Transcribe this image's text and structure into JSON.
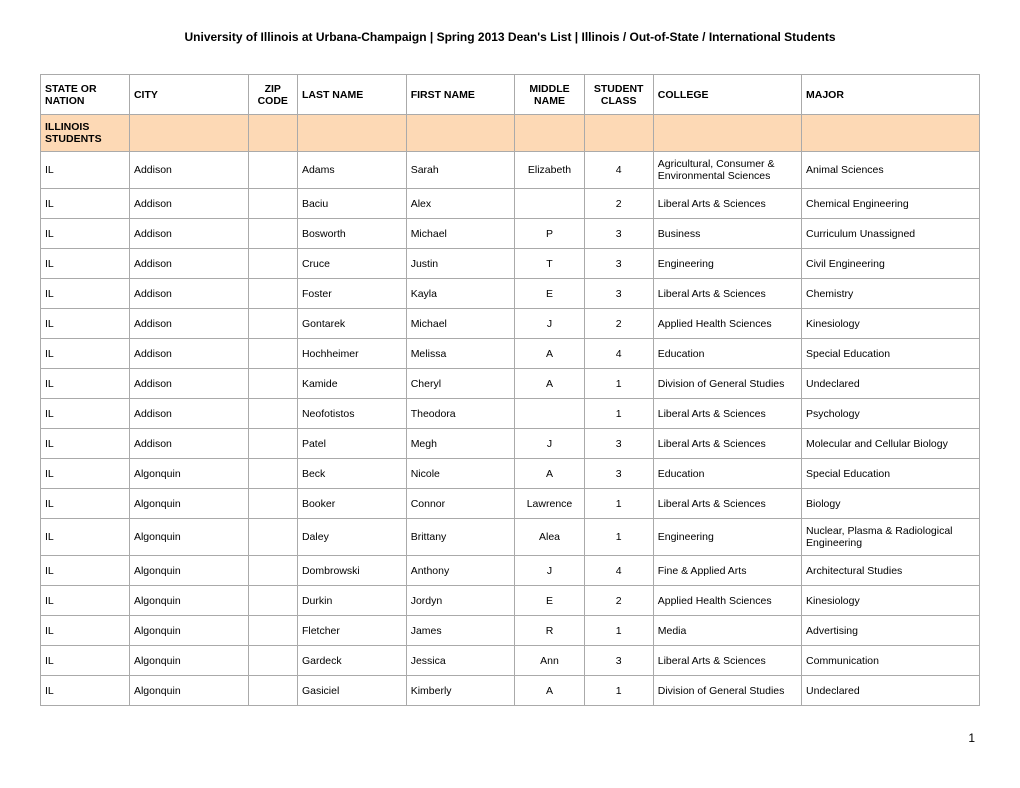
{
  "title": "University of Illinois at Urbana-Champaign | Spring 2013 Dean's List | Illinois / Out-of-State / International Students",
  "pageNumber": "1",
  "sectionLabel": "ILLINOIS STUDENTS",
  "sectionRowColor": "#fdd9b5",
  "borderColor": "#aaaaaa",
  "columns": [
    {
      "key": "state",
      "label": "STATE OR NATION",
      "class": "col-state",
      "align": "left"
    },
    {
      "key": "city",
      "label": "CITY",
      "class": "col-city",
      "align": "left"
    },
    {
      "key": "zip",
      "label": "ZIP CODE",
      "class": "col-zip",
      "align": "center"
    },
    {
      "key": "last",
      "label": "LAST NAME",
      "class": "col-last",
      "align": "left"
    },
    {
      "key": "first",
      "label": "FIRST NAME",
      "class": "col-first",
      "align": "left"
    },
    {
      "key": "middle",
      "label": "MIDDLE NAME",
      "class": "col-middle",
      "align": "center"
    },
    {
      "key": "studentClass",
      "label": "STUDENT CLASS",
      "class": "col-class",
      "align": "center"
    },
    {
      "key": "college",
      "label": "COLLEGE",
      "class": "col-college",
      "align": "left"
    },
    {
      "key": "major",
      "label": "MAJOR",
      "class": "col-major",
      "align": "left"
    }
  ],
  "rows": [
    {
      "state": "IL",
      "city": "Addison",
      "zip": "",
      "last": "Adams",
      "first": "Sarah",
      "middle": "Elizabeth",
      "studentClass": "4",
      "college": "Agricultural, Consumer & Environmental Sciences",
      "major": "Animal Sciences"
    },
    {
      "state": "IL",
      "city": "Addison",
      "zip": "",
      "last": "Baciu",
      "first": "Alex",
      "middle": "",
      "studentClass": "2",
      "college": "Liberal Arts & Sciences",
      "major": "Chemical Engineering"
    },
    {
      "state": "IL",
      "city": "Addison",
      "zip": "",
      "last": "Bosworth",
      "first": "Michael",
      "middle": "P",
      "studentClass": "3",
      "college": "Business",
      "major": "Curriculum Unassigned"
    },
    {
      "state": "IL",
      "city": "Addison",
      "zip": "",
      "last": "Cruce",
      "first": "Justin",
      "middle": "T",
      "studentClass": "3",
      "college": "Engineering",
      "major": "Civil Engineering"
    },
    {
      "state": "IL",
      "city": "Addison",
      "zip": "",
      "last": "Foster",
      "first": "Kayla",
      "middle": "E",
      "studentClass": "3",
      "college": "Liberal Arts & Sciences",
      "major": "Chemistry"
    },
    {
      "state": "IL",
      "city": "Addison",
      "zip": "",
      "last": "Gontarek",
      "first": "Michael",
      "middle": "J",
      "studentClass": "2",
      "college": "Applied Health Sciences",
      "major": "Kinesiology"
    },
    {
      "state": "IL",
      "city": "Addison",
      "zip": "",
      "last": "Hochheimer",
      "first": "Melissa",
      "middle": "A",
      "studentClass": "4",
      "college": "Education",
      "major": "Special Education"
    },
    {
      "state": "IL",
      "city": "Addison",
      "zip": "",
      "last": "Kamide",
      "first": "Cheryl",
      "middle": "A",
      "studentClass": "1",
      "college": "Division of General Studies",
      "major": "Undeclared"
    },
    {
      "state": "IL",
      "city": "Addison",
      "zip": "",
      "last": "Neofotistos",
      "first": "Theodora",
      "middle": "",
      "studentClass": "1",
      "college": "Liberal Arts & Sciences",
      "major": "Psychology"
    },
    {
      "state": "IL",
      "city": "Addison",
      "zip": "",
      "last": "Patel",
      "first": "Megh",
      "middle": "J",
      "studentClass": "3",
      "college": "Liberal Arts & Sciences",
      "major": "Molecular and Cellular Biology"
    },
    {
      "state": "IL",
      "city": "Algonquin",
      "zip": "",
      "last": "Beck",
      "first": "Nicole",
      "middle": "A",
      "studentClass": "3",
      "college": "Education",
      "major": "Special Education"
    },
    {
      "state": "IL",
      "city": "Algonquin",
      "zip": "",
      "last": "Booker",
      "first": "Connor",
      "middle": "Lawrence",
      "studentClass": "1",
      "college": "Liberal Arts & Sciences",
      "major": "Biology"
    },
    {
      "state": "IL",
      "city": "Algonquin",
      "zip": "",
      "last": "Daley",
      "first": "Brittany",
      "middle": "Alea",
      "studentClass": "1",
      "college": "Engineering",
      "major": "Nuclear, Plasma & Radiological Engineering"
    },
    {
      "state": "IL",
      "city": "Algonquin",
      "zip": "",
      "last": "Dombrowski",
      "first": "Anthony",
      "middle": "J",
      "studentClass": "4",
      "college": "Fine & Applied Arts",
      "major": "Architectural Studies"
    },
    {
      "state": "IL",
      "city": "Algonquin",
      "zip": "",
      "last": "Durkin",
      "first": "Jordyn",
      "middle": "E",
      "studentClass": "2",
      "college": "Applied Health Sciences",
      "major": "Kinesiology"
    },
    {
      "state": "IL",
      "city": "Algonquin",
      "zip": "",
      "last": "Fletcher",
      "first": "James",
      "middle": "R",
      "studentClass": "1",
      "college": "Media",
      "major": "Advertising"
    },
    {
      "state": "IL",
      "city": "Algonquin",
      "zip": "",
      "last": "Gardeck",
      "first": "Jessica",
      "middle": "Ann",
      "studentClass": "3",
      "college": "Liberal Arts & Sciences",
      "major": "Communication"
    },
    {
      "state": "IL",
      "city": "Algonquin",
      "zip": "",
      "last": "Gasiciel",
      "first": "Kimberly",
      "middle": "A",
      "studentClass": "1",
      "college": "Division of General Studies",
      "major": "Undeclared"
    }
  ]
}
